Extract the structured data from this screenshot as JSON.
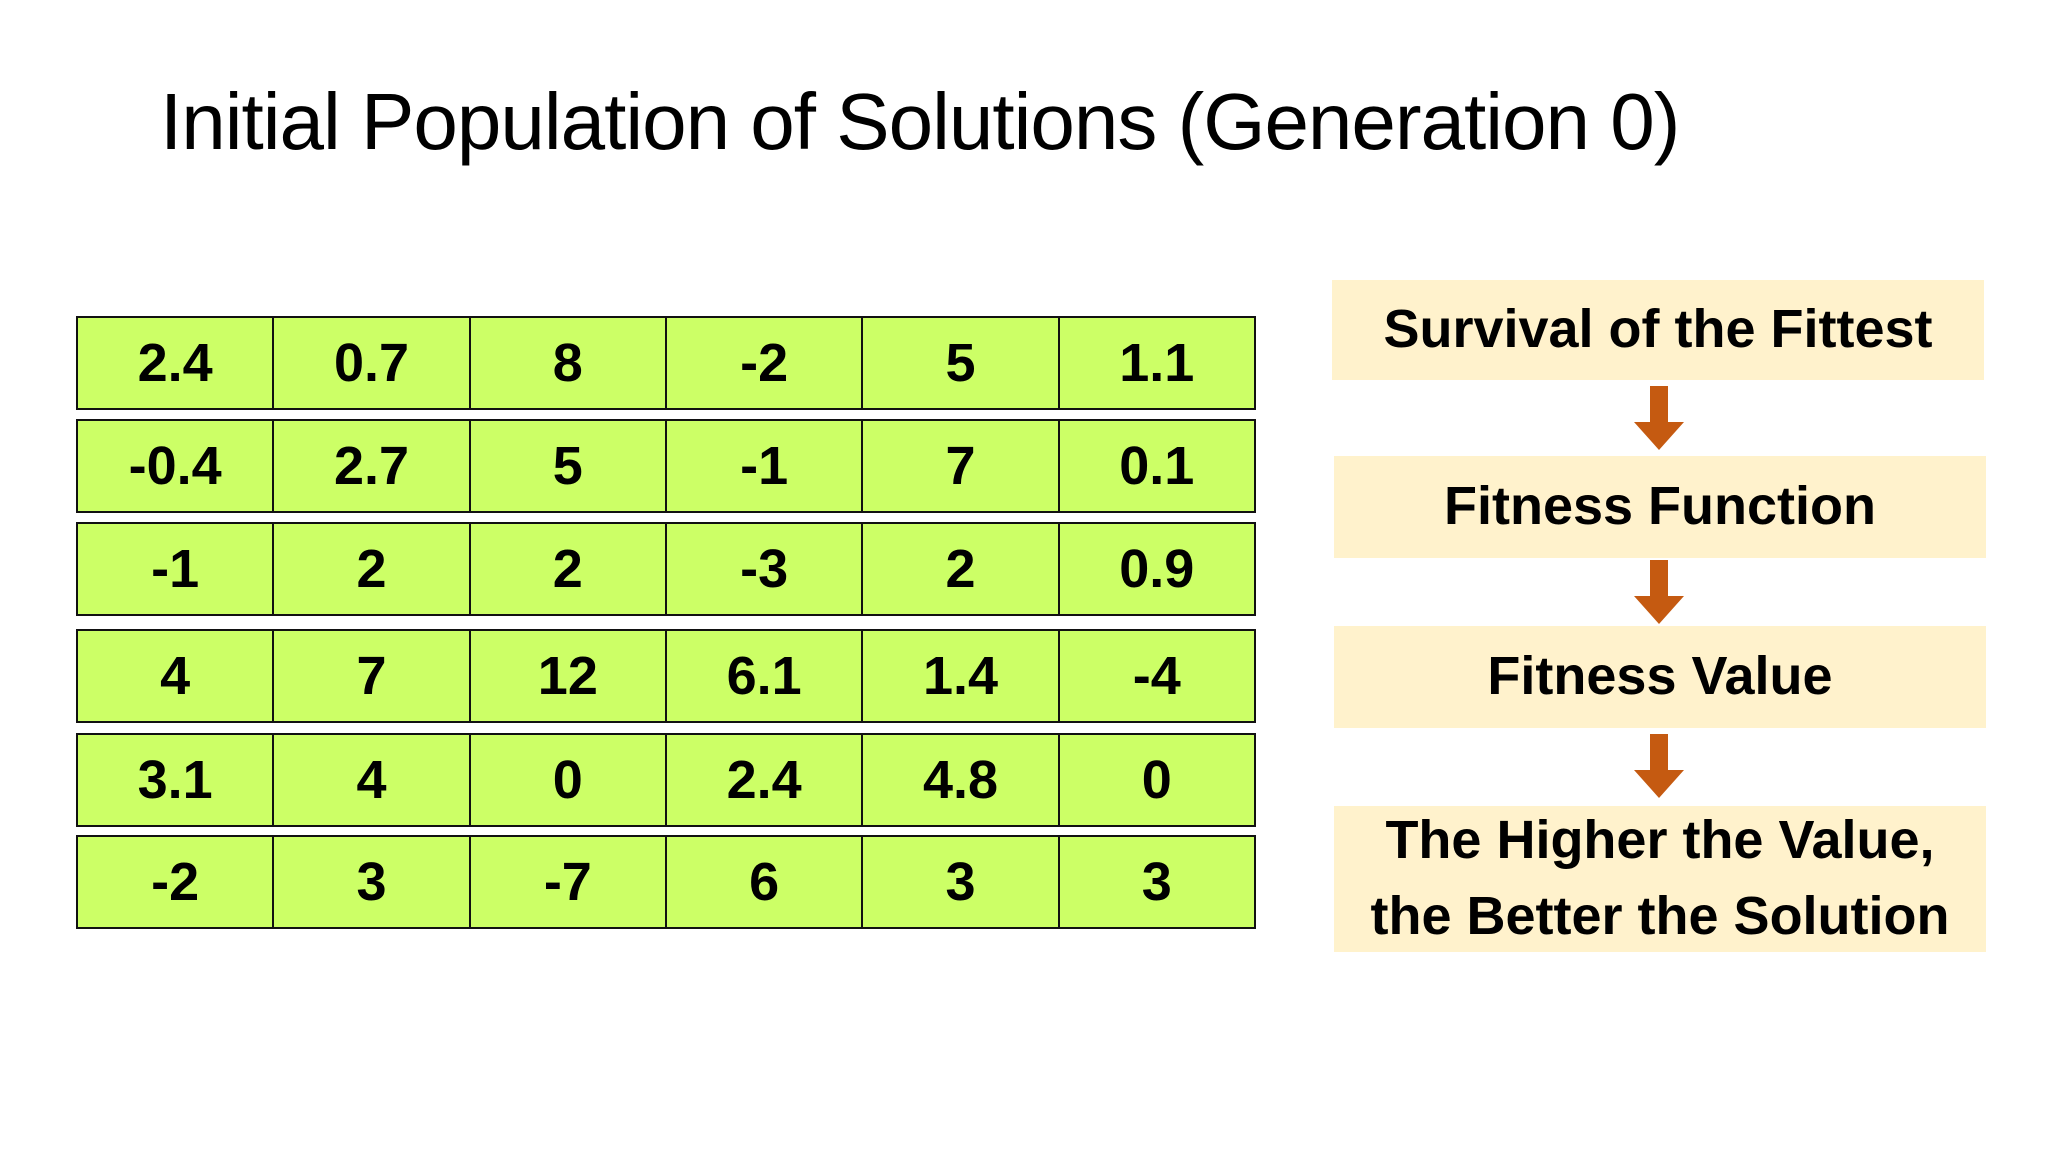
{
  "title": "Initial Population of Solutions (Generation 0)",
  "population": [
    [
      "2.4",
      "0.7",
      "8",
      "-2",
      "5",
      "1.1"
    ],
    [
      "-0.4",
      "2.7",
      "5",
      "-1",
      "7",
      "0.1"
    ],
    [
      "-1",
      "2",
      "2",
      "-3",
      "2",
      "0.9"
    ],
    [
      "4",
      "7",
      "12",
      "6.1",
      "1.4",
      "-4"
    ],
    [
      "3.1",
      "4",
      "0",
      "2.4",
      "4.8",
      "0"
    ],
    [
      "-2",
      "3",
      "-7",
      "6",
      "3",
      "3"
    ]
  ],
  "flow": {
    "step1": "Survival of the Fittest",
    "step2": "Fitness Function",
    "step3": "Fitness Value",
    "step4_line1": "The Higher the Value,",
    "step4_line2": "the Better the Solution"
  },
  "colors": {
    "gene_fill": "#ccff66",
    "flow_box_fill": "#fff2cc",
    "arrow": "#c55a11"
  },
  "icons": {
    "flow_arrow": "arrow-down-icon"
  }
}
